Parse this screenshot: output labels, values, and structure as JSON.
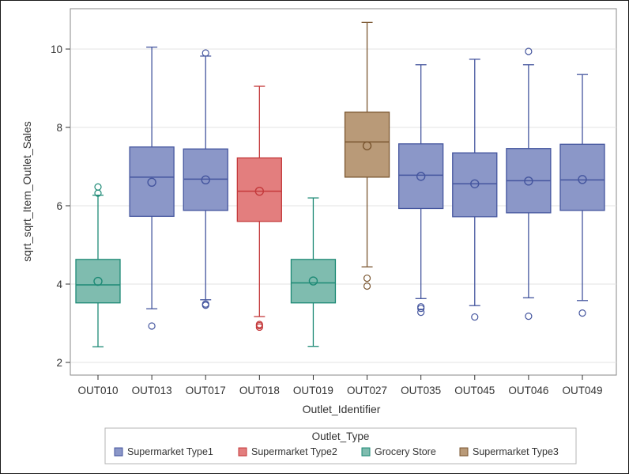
{
  "chart_data": {
    "type": "box",
    "title": "",
    "xlabel": "Outlet_Identifier",
    "ylabel": "sqrt_sqrt_Item_Outlet_Sales",
    "ylim": [
      1.7,
      10.9
    ],
    "yticks": [
      2,
      4,
      6,
      8,
      10
    ],
    "grid": true,
    "categories": [
      "OUT010",
      "OUT013",
      "OUT017",
      "OUT018",
      "OUT019",
      "OUT027",
      "OUT035",
      "OUT045",
      "OUT046",
      "OUT049"
    ],
    "boxes": [
      {
        "category": "OUT010",
        "group": "Grocery Store",
        "min": 2.4,
        "q1": 3.52,
        "median": 3.98,
        "q3": 4.63,
        "max": 6.27,
        "mean": 4.07,
        "outliers": [
          6.32,
          6.48
        ]
      },
      {
        "category": "OUT013",
        "group": "Supermarket Type1",
        "min": 3.37,
        "q1": 5.73,
        "median": 6.73,
        "q3": 7.5,
        "max": 10.05,
        "mean": 6.6,
        "outliers": [
          2.93
        ]
      },
      {
        "category": "OUT017",
        "group": "Supermarket Type1",
        "min": 3.6,
        "q1": 5.88,
        "median": 6.68,
        "q3": 7.45,
        "max": 9.82,
        "mean": 6.66,
        "outliers": [
          3.46,
          3.49,
          9.9
        ]
      },
      {
        "category": "OUT018",
        "group": "Supermarket Type2",
        "min": 3.17,
        "q1": 5.6,
        "median": 6.37,
        "q3": 7.22,
        "max": 9.05,
        "mean": 6.37,
        "outliers": [
          2.9,
          2.94,
          2.97
        ]
      },
      {
        "category": "OUT019",
        "group": "Grocery Store",
        "min": 2.41,
        "q1": 3.52,
        "median": 4.03,
        "q3": 4.63,
        "max": 6.2,
        "mean": 4.08,
        "outliers": []
      },
      {
        "category": "OUT027",
        "group": "Supermarket Type3",
        "min": 4.44,
        "q1": 6.73,
        "median": 7.63,
        "q3": 8.39,
        "max": 10.68,
        "mean": 7.53,
        "outliers": [
          3.95,
          4.15
        ]
      },
      {
        "category": "OUT035",
        "group": "Supermarket Type1",
        "min": 3.63,
        "q1": 5.93,
        "median": 6.78,
        "q3": 7.58,
        "max": 9.6,
        "mean": 6.75,
        "outliers": [
          3.28,
          3.38,
          3.42
        ]
      },
      {
        "category": "OUT045",
        "group": "Supermarket Type1",
        "min": 3.45,
        "q1": 5.72,
        "median": 6.56,
        "q3": 7.35,
        "max": 9.74,
        "mean": 6.56,
        "outliers": [
          3.16
        ]
      },
      {
        "category": "OUT046",
        "group": "Supermarket Type1",
        "min": 3.65,
        "q1": 5.82,
        "median": 6.64,
        "q3": 7.46,
        "max": 9.6,
        "mean": 6.63,
        "outliers": [
          3.18,
          9.94
        ]
      },
      {
        "category": "OUT049",
        "group": "Supermarket Type1",
        "min": 3.58,
        "q1": 5.88,
        "median": 6.66,
        "q3": 7.57,
        "max": 9.35,
        "mean": 6.67,
        "outliers": [
          3.26
        ]
      }
    ],
    "legend": {
      "title": "Outlet_Type",
      "placement": "bottom",
      "entries": [
        {
          "name": "Supermarket Type1",
          "fill": "#8b97c8",
          "stroke": "#44559e"
        },
        {
          "name": "Supermarket Type2",
          "fill": "#e37e7e",
          "stroke": "#c4393b"
        },
        {
          "name": "Grocery Store",
          "fill": "#7fbcaf",
          "stroke": "#1e8a76"
        },
        {
          "name": "Supermarket Type3",
          "fill": "#b99a78",
          "stroke": "#7a5630"
        }
      ]
    }
  }
}
